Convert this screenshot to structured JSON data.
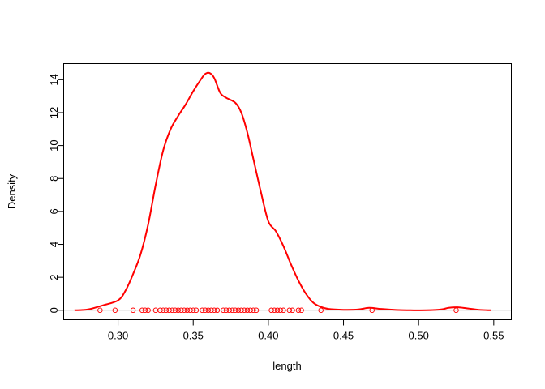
{
  "chart_data": {
    "type": "line",
    "title": "",
    "xlabel": "length",
    "ylabel": "Density",
    "xlim": [
      0.2638,
      0.5617
    ],
    "ylim": [
      -0.576,
      14.976
    ],
    "xticks": [
      0.3,
      0.35,
      0.4,
      0.45,
      0.5,
      0.55
    ],
    "xtick_labels": [
      "0.30",
      "0.35",
      "0.40",
      "0.45",
      "0.50",
      "0.55"
    ],
    "yticks": [
      0,
      2,
      4,
      6,
      8,
      10,
      12,
      14
    ],
    "ytick_labels": [
      "0",
      "2",
      "4",
      "6",
      "8",
      "10",
      "12",
      "14"
    ],
    "grid": false,
    "legend": "none",
    "colors": {
      "curve": "#ff0000",
      "points": "#ff0000",
      "baseline": "#bebebe",
      "frame": "#000000"
    },
    "series": [
      {
        "kind": "density-curve",
        "x": [
          0.271,
          0.28,
          0.29,
          0.3,
          0.305,
          0.31,
          0.315,
          0.32,
          0.325,
          0.33,
          0.335,
          0.34,
          0.345,
          0.35,
          0.355,
          0.358,
          0.361,
          0.364,
          0.368,
          0.372,
          0.378,
          0.382,
          0.386,
          0.39,
          0.395,
          0.4,
          0.405,
          0.41,
          0.415,
          0.42,
          0.425,
          0.43,
          0.435,
          0.44,
          0.45,
          0.46,
          0.467,
          0.475,
          0.485,
          0.495,
          0.505,
          0.515,
          0.52,
          0.526,
          0.532,
          0.54,
          0.548
        ],
        "values": [
          0.0,
          0.05,
          0.3,
          0.6,
          1.2,
          2.2,
          3.4,
          5.2,
          7.6,
          9.7,
          11.0,
          11.8,
          12.5,
          13.3,
          14.0,
          14.35,
          14.4,
          14.1,
          13.2,
          12.9,
          12.6,
          12.0,
          10.8,
          9.2,
          7.2,
          5.4,
          4.8,
          3.9,
          2.8,
          1.8,
          1.0,
          0.45,
          0.2,
          0.08,
          0.03,
          0.05,
          0.15,
          0.08,
          0.02,
          0.0,
          0.0,
          0.05,
          0.15,
          0.18,
          0.12,
          0.03,
          0.0
        ]
      },
      {
        "kind": "rug-points",
        "x": [
          0.288,
          0.298,
          0.31,
          0.316,
          0.318,
          0.32,
          0.325,
          0.328,
          0.33,
          0.332,
          0.334,
          0.336,
          0.338,
          0.34,
          0.342,
          0.344,
          0.346,
          0.348,
          0.35,
          0.352,
          0.356,
          0.358,
          0.36,
          0.362,
          0.364,
          0.366,
          0.37,
          0.372,
          0.374,
          0.376,
          0.378,
          0.38,
          0.382,
          0.384,
          0.386,
          0.388,
          0.39,
          0.392,
          0.402,
          0.404,
          0.406,
          0.408,
          0.41,
          0.414,
          0.416,
          0.42,
          0.422,
          0.435,
          0.469,
          0.525
        ],
        "values": [
          0,
          0,
          0,
          0,
          0,
          0,
          0,
          0,
          0,
          0,
          0,
          0,
          0,
          0,
          0,
          0,
          0,
          0,
          0,
          0,
          0,
          0,
          0,
          0,
          0,
          0,
          0,
          0,
          0,
          0,
          0,
          0,
          0,
          0,
          0,
          0,
          0,
          0,
          0,
          0,
          0,
          0,
          0,
          0,
          0,
          0,
          0,
          0,
          0,
          0
        ]
      }
    ]
  }
}
